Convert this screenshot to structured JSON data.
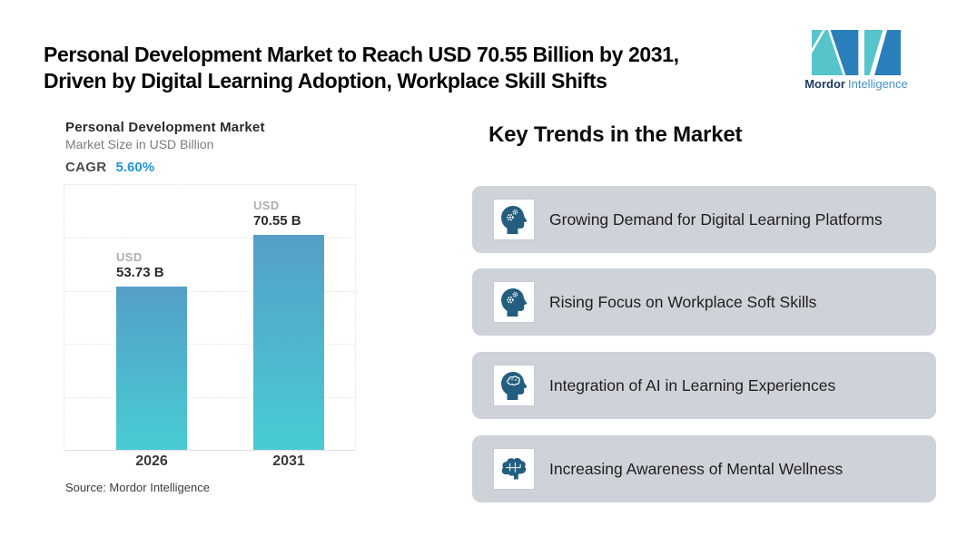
{
  "header": {
    "title_line1": "Personal Development Market to Reach USD 70.55 Billion by 2031,",
    "title_line2": "Driven by Digital Learning Adoption, Workplace Skill Shifts",
    "logo": {
      "name_bold": "Mordor",
      "name_regular": "Intelligence",
      "teal": "#56c5cb",
      "blue": "#2b7fba"
    }
  },
  "chart_data": {
    "type": "bar",
    "title": "Personal Development Market",
    "subtitle": "Market Size in USD Billion",
    "cagr_label": "CAGR",
    "cagr_value": "5.60%",
    "cagr_color": "#1e96d8",
    "categories": [
      "2026",
      "2031"
    ],
    "values": [
      53.73,
      70.55
    ],
    "value_labels": [
      [
        "USD",
        "53.73 B"
      ],
      [
        "USD",
        "70.55 B"
      ]
    ],
    "xlabel": "",
    "ylabel": "Market Size in USD Billion",
    "ylim": [
      0,
      87
    ],
    "grid": true,
    "legend": "none",
    "bar_gradient_top": "#549fc7",
    "bar_gradient_bottom": "#48ccd3",
    "source": "Source: Mordor Intelligence"
  },
  "trends": {
    "heading": "Key Trends in the Market",
    "card_bg": "#ced2d9",
    "icon_color": "#235e7e",
    "items": [
      {
        "icon": "head-gears-icon",
        "label": "Growing Demand for Digital Learning Platforms"
      },
      {
        "icon": "head-gears-icon",
        "label": "Rising Focus on Workplace Soft Skills"
      },
      {
        "icon": "head-brain-icon",
        "label": "Integration of AI in Learning Experiences"
      },
      {
        "icon": "brain-icon",
        "label": "Increasing Awareness of Mental Wellness"
      }
    ]
  }
}
